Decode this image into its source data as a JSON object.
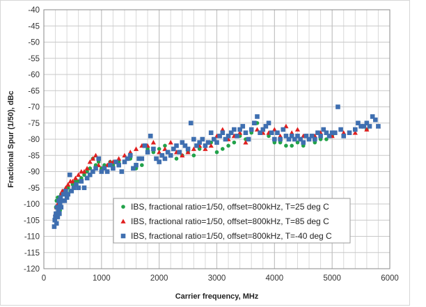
{
  "chart_data": {
    "type": "scatter",
    "title": "",
    "xlabel": "Carrier frequency, MHz",
    "ylabel": "Fractional Spur (1/50), dBc",
    "xlim": [
      0,
      6000
    ],
    "ylim": [
      -120,
      -40
    ],
    "xticks": [
      0,
      1000,
      2000,
      3000,
      4000,
      5000,
      6000
    ],
    "yticks": [
      -120,
      -115,
      -110,
      -105,
      -100,
      -95,
      -90,
      -85,
      -80,
      -75,
      -70,
      -65,
      -60,
      -55,
      -50,
      -45,
      -40
    ],
    "grid": true,
    "legend_position": "lower-center",
    "series": [
      {
        "name": "IBS, fractional ratio=1/50, offset=800kHz, T=25 deg C",
        "color": "#22a24a",
        "marker": "circle",
        "points": [
          [
            200,
            -104
          ],
          [
            210,
            -101
          ],
          [
            220,
            -99
          ],
          [
            230,
            -103
          ],
          [
            240,
            -98
          ],
          [
            260,
            -100
          ],
          [
            280,
            -102
          ],
          [
            300,
            -97
          ],
          [
            320,
            -99
          ],
          [
            350,
            -96
          ],
          [
            380,
            -97
          ],
          [
            420,
            -95
          ],
          [
            460,
            -96
          ],
          [
            500,
            -94
          ],
          [
            550,
            -93
          ],
          [
            600,
            -93
          ],
          [
            650,
            -92
          ],
          [
            700,
            -91
          ],
          [
            750,
            -90
          ],
          [
            800,
            -89
          ],
          [
            850,
            -86
          ],
          [
            900,
            -88
          ],
          [
            950,
            -87
          ],
          [
            1000,
            -89
          ],
          [
            1050,
            -88
          ],
          [
            1100,
            -90
          ],
          [
            1150,
            -87
          ],
          [
            1200,
            -88
          ],
          [
            1300,
            -87
          ],
          [
            1400,
            -87
          ],
          [
            1500,
            -86
          ],
          [
            1600,
            -89
          ],
          [
            1700,
            -88
          ],
          [
            1800,
            -83
          ],
          [
            1900,
            -84
          ],
          [
            2000,
            -83
          ],
          [
            2100,
            -82
          ],
          [
            2200,
            -85
          ],
          [
            2300,
            -86
          ],
          [
            2400,
            -85
          ],
          [
            2500,
            -84
          ],
          [
            2600,
            -85
          ],
          [
            2700,
            -83
          ],
          [
            2800,
            -82
          ],
          [
            2900,
            -81
          ],
          [
            3000,
            -84
          ],
          [
            3100,
            -83
          ],
          [
            3200,
            -82
          ],
          [
            3300,
            -81
          ],
          [
            3400,
            -79
          ],
          [
            3500,
            -80
          ],
          [
            3600,
            -78
          ],
          [
            3700,
            -75
          ],
          [
            3800,
            -77
          ],
          [
            3900,
            -79
          ],
          [
            4000,
            -81
          ],
          [
            4100,
            -81
          ],
          [
            4200,
            -82
          ],
          [
            4300,
            -82
          ],
          [
            4400,
            -81
          ],
          [
            4500,
            -82
          ],
          [
            4600,
            -80
          ],
          [
            4700,
            -81
          ],
          [
            4800,
            -80
          ],
          [
            4900,
            -80
          ],
          [
            5000,
            -79
          ],
          [
            5200,
            -79
          ],
          [
            5400,
            -77
          ],
          [
            5600,
            -77
          ],
          [
            5800,
            -76
          ]
        ]
      },
      {
        "name": "IBS, fractional ratio=1/50, offset=800kHz, T=85 deg C",
        "color": "#e02020",
        "marker": "triangle",
        "points": [
          [
            200,
            -103
          ],
          [
            220,
            -101
          ],
          [
            240,
            -100
          ],
          [
            260,
            -99
          ],
          [
            280,
            -98
          ],
          [
            300,
            -97
          ],
          [
            320,
            -96
          ],
          [
            350,
            -96
          ],
          [
            380,
            -95
          ],
          [
            420,
            -94
          ],
          [
            460,
            -93
          ],
          [
            500,
            -93
          ],
          [
            550,
            -92
          ],
          [
            600,
            -91
          ],
          [
            650,
            -90
          ],
          [
            700,
            -90
          ],
          [
            750,
            -89
          ],
          [
            800,
            -87
          ],
          [
            850,
            -86
          ],
          [
            900,
            -85
          ],
          [
            950,
            -88
          ],
          [
            1000,
            -90
          ],
          [
            1050,
            -89
          ],
          [
            1100,
            -88
          ],
          [
            1150,
            -87
          ],
          [
            1200,
            -87
          ],
          [
            1300,
            -86
          ],
          [
            1400,
            -85
          ],
          [
            1500,
            -84
          ],
          [
            1600,
            -83
          ],
          [
            1700,
            -82
          ],
          [
            1800,
            -82
          ],
          [
            1900,
            -81
          ],
          [
            2000,
            -84
          ],
          [
            2100,
            -83
          ],
          [
            2200,
            -81
          ],
          [
            2300,
            -84
          ],
          [
            2400,
            -85
          ],
          [
            2500,
            -84
          ],
          [
            2600,
            -83
          ],
          [
            2700,
            -82
          ],
          [
            2800,
            -83
          ],
          [
            2900,
            -82
          ],
          [
            3000,
            -79
          ],
          [
            3100,
            -77
          ],
          [
            3200,
            -80
          ],
          [
            3300,
            -79
          ],
          [
            3400,
            -78
          ],
          [
            3500,
            -81
          ],
          [
            3600,
            -77
          ],
          [
            3700,
            -77
          ],
          [
            3800,
            -78
          ],
          [
            3900,
            -78
          ],
          [
            4000,
            -77
          ],
          [
            4100,
            -79
          ],
          [
            4200,
            -76
          ],
          [
            4300,
            -78
          ],
          [
            4400,
            -77
          ],
          [
            4500,
            -79
          ],
          [
            4600,
            -80
          ],
          [
            4700,
            -79
          ],
          [
            4800,
            -78
          ],
          [
            4900,
            -78
          ],
          [
            5000,
            -79
          ],
          [
            5200,
            -78
          ],
          [
            5400,
            -78
          ],
          [
            5600,
            -77
          ],
          [
            5800,
            -76
          ]
        ]
      },
      {
        "name": "IBS, fractional ratio=1/50, offset=800kHz, T=-40 deg C",
        "color": "#3f6fb0",
        "marker": "square",
        "points": [
          [
            180,
            -107
          ],
          [
            190,
            -105
          ],
          [
            200,
            -104
          ],
          [
            210,
            -103
          ],
          [
            220,
            -106
          ],
          [
            230,
            -101
          ],
          [
            240,
            -104
          ],
          [
            250,
            -102
          ],
          [
            260,
            -99
          ],
          [
            270,
            -103
          ],
          [
            280,
            -100
          ],
          [
            290,
            -98
          ],
          [
            300,
            -101
          ],
          [
            320,
            -99
          ],
          [
            340,
            -97
          ],
          [
            360,
            -99
          ],
          [
            380,
            -96
          ],
          [
            400,
            -98
          ],
          [
            420,
            -97
          ],
          [
            450,
            -91
          ],
          [
            480,
            -96
          ],
          [
            520,
            -95
          ],
          [
            560,
            -94
          ],
          [
            600,
            -95
          ],
          [
            650,
            -93
          ],
          [
            700,
            -95
          ],
          [
            750,
            -92
          ],
          [
            800,
            -91
          ],
          [
            850,
            -90
          ],
          [
            900,
            -89
          ],
          [
            950,
            -86
          ],
          [
            1000,
            -90
          ],
          [
            1050,
            -89
          ],
          [
            1100,
            -90
          ],
          [
            1150,
            -88
          ],
          [
            1200,
            -89
          ],
          [
            1250,
            -87
          ],
          [
            1300,
            -88
          ],
          [
            1350,
            -90
          ],
          [
            1400,
            -87
          ],
          [
            1450,
            -86
          ],
          [
            1500,
            -85
          ],
          [
            1550,
            -89
          ],
          [
            1600,
            -88
          ],
          [
            1650,
            -86
          ],
          [
            1700,
            -86
          ],
          [
            1750,
            -82
          ],
          [
            1800,
            -84
          ],
          [
            1850,
            -79
          ],
          [
            1900,
            -83
          ],
          [
            1950,
            -86
          ],
          [
            2000,
            -87
          ],
          [
            2050,
            -85
          ],
          [
            2100,
            -86
          ],
          [
            2150,
            -84
          ],
          [
            2200,
            -85
          ],
          [
            2250,
            -83
          ],
          [
            2300,
            -82
          ],
          [
            2350,
            -84
          ],
          [
            2400,
            -81
          ],
          [
            2450,
            -82
          ],
          [
            2500,
            -83
          ],
          [
            2550,
            -75
          ],
          [
            2600,
            -80
          ],
          [
            2650,
            -82
          ],
          [
            2700,
            -81
          ],
          [
            2750,
            -80
          ],
          [
            2800,
            -82
          ],
          [
            2850,
            -81
          ],
          [
            2900,
            -78
          ],
          [
            2950,
            -80
          ],
          [
            3000,
            -81
          ],
          [
            3050,
            -79
          ],
          [
            3100,
            -78
          ],
          [
            3150,
            -80
          ],
          [
            3200,
            -79
          ],
          [
            3250,
            -78
          ],
          [
            3300,
            -77
          ],
          [
            3350,
            -79
          ],
          [
            3400,
            -77
          ],
          [
            3450,
            -76
          ],
          [
            3500,
            -78
          ],
          [
            3550,
            -80
          ],
          [
            3600,
            -77
          ],
          [
            3650,
            -75
          ],
          [
            3700,
            -73
          ],
          [
            3750,
            -78
          ],
          [
            3800,
            -77
          ],
          [
            3850,
            -76
          ],
          [
            3900,
            -75
          ],
          [
            3950,
            -78
          ],
          [
            4000,
            -80
          ],
          [
            4050,
            -78
          ],
          [
            4100,
            -80
          ],
          [
            4150,
            -77
          ],
          [
            4200,
            -79
          ],
          [
            4250,
            -80
          ],
          [
            4300,
            -79
          ],
          [
            4350,
            -80
          ],
          [
            4400,
            -79
          ],
          [
            4450,
            -80
          ],
          [
            4500,
            -81
          ],
          [
            4550,
            -79
          ],
          [
            4600,
            -80
          ],
          [
            4650,
            -79
          ],
          [
            4700,
            -80
          ],
          [
            4750,
            -78
          ],
          [
            4800,
            -79
          ],
          [
            4850,
            -77
          ],
          [
            4900,
            -78
          ],
          [
            4950,
            -79
          ],
          [
            5000,
            -78
          ],
          [
            5050,
            -78
          ],
          [
            5100,
            -70
          ],
          [
            5150,
            -77
          ],
          [
            5200,
            -79
          ],
          [
            5300,
            -78
          ],
          [
            5400,
            -77
          ],
          [
            5450,
            -75
          ],
          [
            5500,
            -76
          ],
          [
            5550,
            -76
          ],
          [
            5600,
            -75
          ],
          [
            5650,
            -76
          ],
          [
            5700,
            -73
          ],
          [
            5750,
            -74
          ],
          [
            5800,
            -76
          ]
        ]
      }
    ]
  }
}
